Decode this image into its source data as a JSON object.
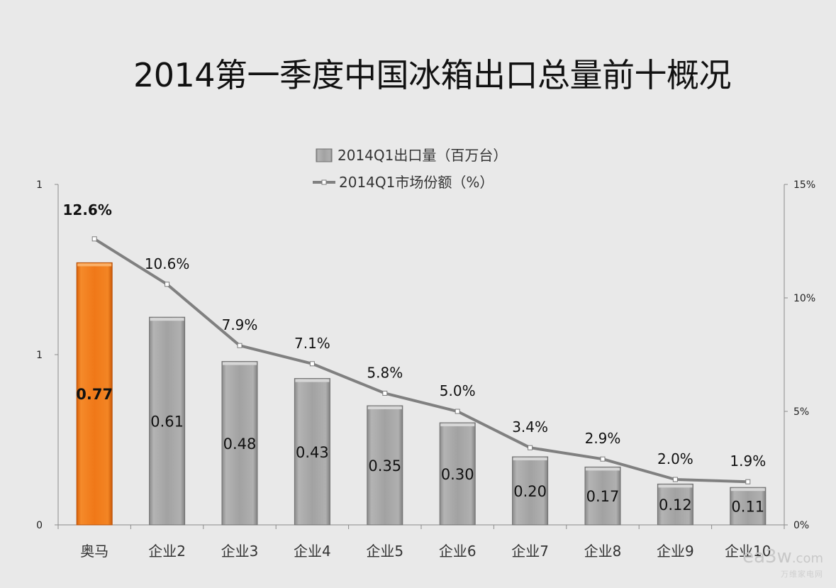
{
  "chart_data": {
    "type": "bar",
    "title": "2014第一季度中国冰箱出口总量前十概况",
    "categories": [
      "奥马",
      "企业2",
      "企业3",
      "企业4",
      "企业5",
      "企业6",
      "企业7",
      "企业8",
      "企业9",
      "企业10"
    ],
    "series": [
      {
        "name": "2014Q1出口量（百万台）",
        "type": "bar",
        "axis": "left",
        "values": [
          0.77,
          0.61,
          0.48,
          0.43,
          0.35,
          0.3,
          0.2,
          0.17,
          0.12,
          0.11
        ],
        "labels": [
          "0.77",
          "0.61",
          "0.48",
          "0.43",
          "0.35",
          "0.30",
          "0.20",
          "0.17",
          "0.12",
          "0.11"
        ],
        "color": "#a6a6a6",
        "highlight_color": "#f07818"
      },
      {
        "name": "2014Q1市场份额（%）",
        "type": "line",
        "axis": "right",
        "values": [
          12.6,
          10.6,
          7.9,
          7.1,
          5.8,
          5.0,
          3.4,
          2.9,
          2.0,
          1.9
        ],
        "labels": [
          "12.6%",
          "10.6%",
          "7.9%",
          "7.1%",
          "5.8%",
          "5.0%",
          "3.4%",
          "2.9%",
          "2.0%",
          "1.9%"
        ],
        "color": "#808080"
      }
    ],
    "y_left": {
      "ylim": [
        0,
        1.0
      ],
      "ticks": [
        0,
        0.5,
        1.0
      ],
      "tick_labels": [
        "0",
        "1",
        "1"
      ]
    },
    "y_right": {
      "ylim": [
        0,
        15
      ],
      "ticks": [
        0,
        5,
        10,
        15
      ],
      "tick_labels": [
        "0%",
        "5%",
        "10%",
        "15%"
      ]
    },
    "legend_position": "top-center",
    "grid": false
  },
  "watermark": {
    "main": "ea3w",
    "suffix": ".com",
    "sub": "万维家电网"
  }
}
